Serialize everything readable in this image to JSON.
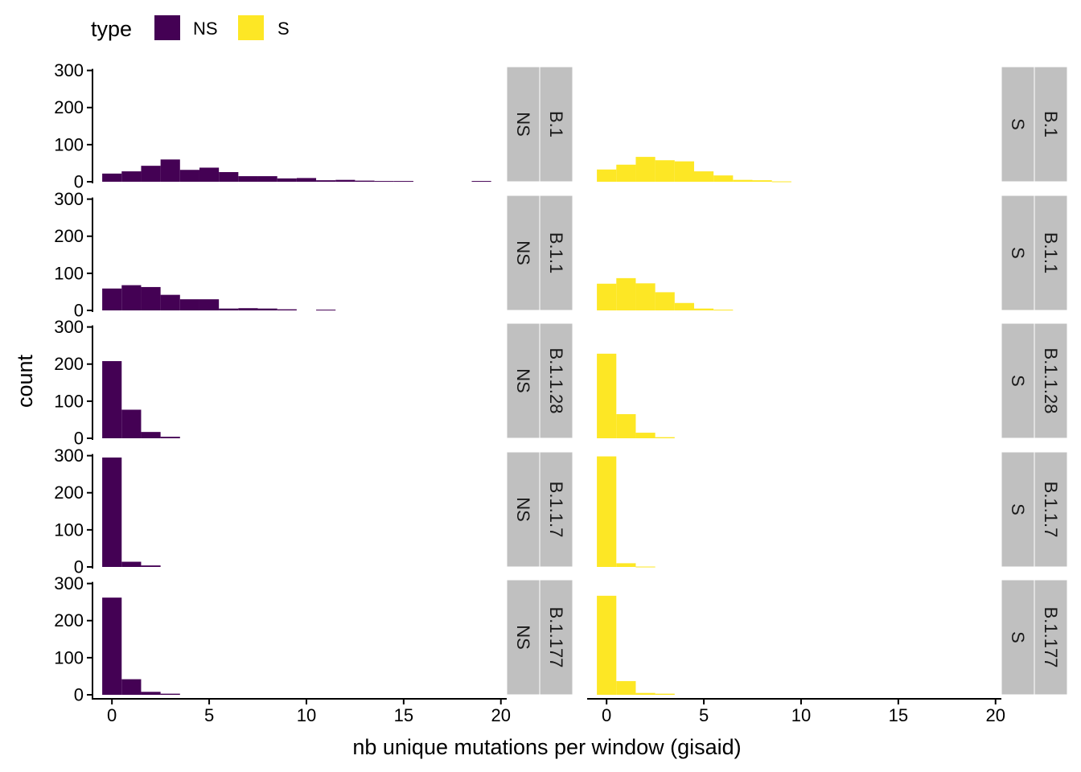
{
  "chart_data": {
    "type": "bar",
    "subtype": "faceted-histogram",
    "xlabel": "nb unique mutations per window (gisaid)",
    "ylabel": "count",
    "xlim": [
      -1,
      20.3
    ],
    "ylim": [
      0,
      310
    ],
    "xticks": [
      0,
      5,
      10,
      15,
      20
    ],
    "yticks": [
      0,
      100,
      200,
      300
    ],
    "bin_width": 1,
    "legend": {
      "title": "type",
      "position": "top-left",
      "entries": [
        {
          "label": "NS",
          "color": "#440154"
        },
        {
          "label": "S",
          "color": "#FDE725"
        }
      ]
    },
    "columns": [
      "NS",
      "S"
    ],
    "lineages": [
      "B.1",
      "B.1.1",
      "B.1.1.28",
      "B.1.1.7",
      "B.1.177"
    ],
    "bins_x": [
      0,
      1,
      2,
      3,
      4,
      5,
      6,
      7,
      8,
      9,
      10,
      11,
      12,
      13,
      14,
      15,
      16,
      17,
      18,
      19
    ],
    "panels": [
      {
        "row": "B.1",
        "col": "NS",
        "counts": [
          22,
          28,
          43,
          60,
          32,
          38,
          26,
          15,
          15,
          9,
          10,
          4,
          5,
          3,
          2,
          2,
          0,
          0,
          0,
          2
        ]
      },
      {
        "row": "B.1",
        "col": "S",
        "counts": [
          33,
          46,
          67,
          58,
          55,
          28,
          17,
          5,
          4,
          1,
          0,
          0,
          0,
          0,
          0,
          0,
          0,
          0,
          0,
          0
        ]
      },
      {
        "row": "B.1.1",
        "col": "NS",
        "counts": [
          59,
          68,
          63,
          42,
          30,
          30,
          5,
          6,
          5,
          3,
          0,
          2,
          0,
          0,
          0,
          0,
          0,
          0,
          0,
          0
        ]
      },
      {
        "row": "B.1.1",
        "col": "S",
        "counts": [
          72,
          87,
          73,
          49,
          20,
          5,
          2,
          0,
          0,
          0,
          0,
          0,
          0,
          0,
          0,
          0,
          0,
          0,
          0,
          0
        ]
      },
      {
        "row": "B.1.1.28",
        "col": "NS",
        "counts": [
          208,
          77,
          17,
          4,
          0,
          0,
          0,
          0,
          0,
          0,
          0,
          0,
          0,
          0,
          0,
          0,
          0,
          0,
          0,
          0
        ]
      },
      {
        "row": "B.1.1.28",
        "col": "S",
        "counts": [
          228,
          65,
          15,
          3,
          0,
          0,
          0,
          0,
          0,
          0,
          0,
          0,
          0,
          0,
          0,
          0,
          0,
          0,
          0,
          0
        ]
      },
      {
        "row": "B.1.1.7",
        "col": "NS",
        "counts": [
          295,
          14,
          4,
          0,
          0,
          0,
          0,
          0,
          0,
          0,
          0,
          0,
          0,
          0,
          0,
          0,
          0,
          0,
          0,
          0
        ]
      },
      {
        "row": "B.1.1.7",
        "col": "S",
        "counts": [
          298,
          10,
          1,
          0,
          0,
          0,
          0,
          0,
          0,
          0,
          0,
          0,
          0,
          0,
          0,
          0,
          0,
          0,
          0,
          0
        ]
      },
      {
        "row": "B.1.177",
        "col": "NS",
        "counts": [
          262,
          42,
          8,
          3,
          0,
          0,
          0,
          0,
          0,
          0,
          0,
          0,
          0,
          0,
          0,
          0,
          0,
          0,
          0,
          0
        ]
      },
      {
        "row": "B.1.177",
        "col": "S",
        "counts": [
          267,
          37,
          5,
          3,
          0,
          0,
          0,
          0,
          0,
          0,
          0,
          0,
          0,
          0,
          0,
          0,
          0,
          0,
          0,
          0
        ]
      }
    ],
    "strip_color": "#c0c0c0",
    "grid": false
  }
}
